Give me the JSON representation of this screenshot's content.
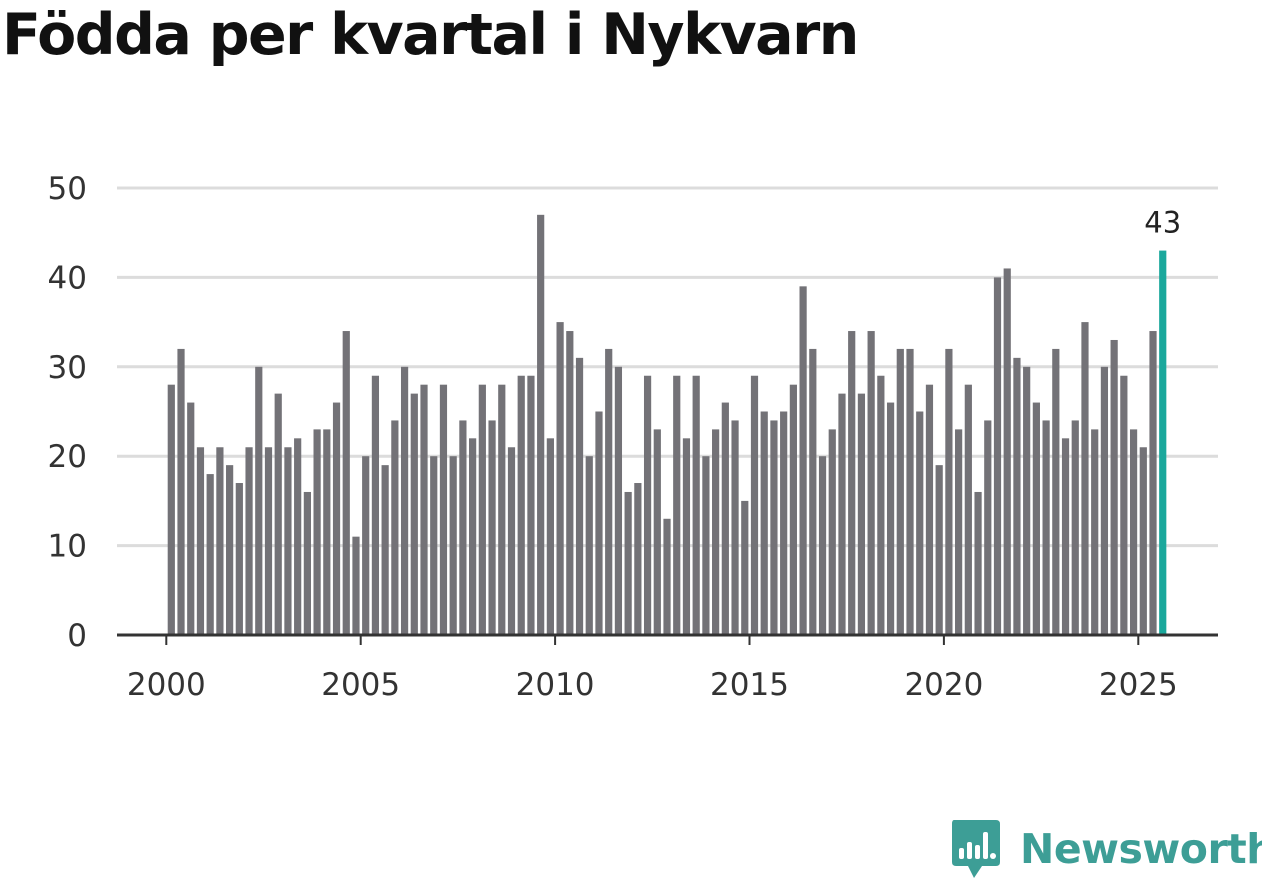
{
  "title": "Födda per kvartal i Nykvarn",
  "brand": {
    "name": "Newsworthy",
    "color": "#3d9e96"
  },
  "colors": {
    "bar": "#737277",
    "highlight": "#1aa89c",
    "grid": "#dcdcdc",
    "axis": "#333333"
  },
  "chart_data": {
    "type": "bar",
    "title": "Födda per kvartal i Nykvarn",
    "xlabel": "",
    "ylabel": "",
    "ylim": [
      0,
      50
    ],
    "yticks": [
      0,
      10,
      20,
      30,
      40,
      50
    ],
    "xticks": [
      "2000",
      "2005",
      "2010",
      "2015",
      "2020",
      "2025"
    ],
    "grid": true,
    "start_year": 2000,
    "periods_per_year": 4,
    "values": [
      28,
      32,
      26,
      21,
      18,
      21,
      19,
      17,
      21,
      30,
      21,
      27,
      21,
      22,
      16,
      23,
      23,
      26,
      34,
      11,
      20,
      29,
      19,
      24,
      30,
      27,
      28,
      20,
      28,
      20,
      24,
      22,
      28,
      24,
      28,
      21,
      29,
      29,
      47,
      22,
      35,
      34,
      31,
      20,
      25,
      32,
      30,
      16,
      17,
      29,
      23,
      13,
      29,
      22,
      29,
      20,
      23,
      26,
      24,
      15,
      29,
      25,
      24,
      25,
      28,
      39,
      32,
      20,
      23,
      27,
      34,
      27,
      34,
      29,
      26,
      32,
      32,
      25,
      28,
      19,
      32,
      23,
      28,
      16,
      24,
      40,
      41,
      31,
      30,
      26,
      24,
      32,
      22,
      24,
      35,
      23,
      30,
      33,
      29,
      23,
      21,
      34,
      43
    ],
    "highlight_index": 102,
    "highlight_label": "43"
  }
}
